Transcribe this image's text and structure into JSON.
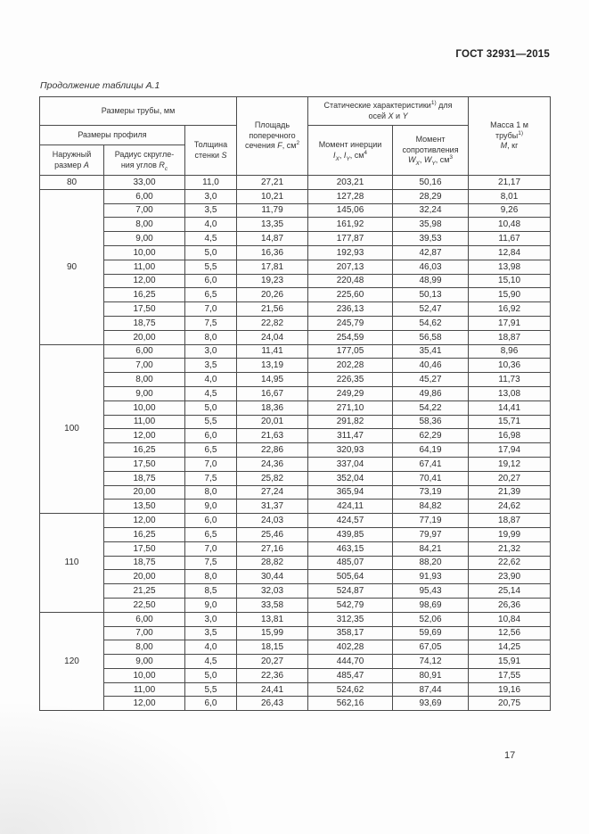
{
  "page": {
    "doc_header": "ГОСТ 32931—2015",
    "table_caption": "Продолжение таблицы А.1",
    "page_number": "17"
  },
  "table": {
    "header": {
      "tube_dims": "Размеры трубы, мм",
      "profile_dims": "Размеры профиля",
      "outer": {
        "l1": "Наружный",
        "l2": "размер ",
        "sym": "А"
      },
      "radius": {
        "l1": "Радиус скругле-",
        "l2": "ния углов ",
        "sym": "R",
        "sub": "с"
      },
      "thickness": {
        "l1": "Толщина",
        "l2": "стенки ",
        "sym": "S"
      },
      "area": {
        "l1": "Площадь",
        "l2": "поперечного",
        "l3": "сечения ",
        "sym": "F",
        "unit": ", см",
        "sup": "2"
      },
      "static": {
        "l1": "Статические характеристики",
        "sup": "1)",
        "l1b": " для",
        "l2": "осей ",
        "symx": "X",
        "sep": " и ",
        "symy": "Y"
      },
      "inertia": {
        "l1": "Момент инерции",
        "sym1": "I",
        "sub1": "X",
        "sep": ", ",
        "sym2": "I",
        "sub2": "Y",
        "unit": ", см",
        "sup": "4"
      },
      "resistance": {
        "l1": "Момент",
        "l2": "сопротивления",
        "sym1": "W",
        "sub1": "X",
        "sep": ", ",
        "sym2": "W",
        "sub2": "Y",
        "unit": ", см",
        "sup": "3"
      },
      "mass": {
        "l1": "Масса 1 м",
        "l2": "трубы",
        "sup": "1)",
        "sym": "М",
        "unit": ", кг"
      }
    },
    "groups": [
      {
        "size": "80",
        "rows": [
          [
            "33,00",
            "11,0",
            "27,21",
            "203,21",
            "50,16",
            "21,17"
          ]
        ]
      },
      {
        "size": "90",
        "rows": [
          [
            "6,00",
            "3,0",
            "10,21",
            "127,28",
            "28,29",
            "8,01"
          ],
          [
            "7,00",
            "3,5",
            "11,79",
            "145,06",
            "32,24",
            "9,26"
          ],
          [
            "8,00",
            "4,0",
            "13,35",
            "161,92",
            "35,98",
            "10,48"
          ],
          [
            "9,00",
            "4,5",
            "14,87",
            "177,87",
            "39,53",
            "11,67"
          ],
          [
            "10,00",
            "5,0",
            "16,36",
            "192,93",
            "42,87",
            "12,84"
          ],
          [
            "11,00",
            "5,5",
            "17,81",
            "207,13",
            "46,03",
            "13,98"
          ],
          [
            "12,00",
            "6,0",
            "19,23",
            "220,48",
            "48,99",
            "15,10"
          ],
          [
            "16,25",
            "6,5",
            "20,26",
            "225,60",
            "50,13",
            "15,90"
          ],
          [
            "17,50",
            "7,0",
            "21,56",
            "236,13",
            "52,47",
            "16,92"
          ],
          [
            "18,75",
            "7,5",
            "22,82",
            "245,79",
            "54,62",
            "17,91"
          ],
          [
            "20,00",
            "8,0",
            "24,04",
            "254,59",
            "56,58",
            "18,87"
          ]
        ]
      },
      {
        "size": "100",
        "rows": [
          [
            "6,00",
            "3,0",
            "11,41",
            "177,05",
            "35,41",
            "8,96"
          ],
          [
            "7,00",
            "3,5",
            "13,19",
            "202,28",
            "40,46",
            "10,36"
          ],
          [
            "8,00",
            "4,0",
            "14,95",
            "226,35",
            "45,27",
            "11,73"
          ],
          [
            "9,00",
            "4,5",
            "16,67",
            "249,29",
            "49,86",
            "13,08"
          ],
          [
            "10,00",
            "5,0",
            "18,36",
            "271,10",
            "54,22",
            "14,41"
          ],
          [
            "11,00",
            "5,5",
            "20,01",
            "291,82",
            "58,36",
            "15,71"
          ],
          [
            "12,00",
            "6,0",
            "21,63",
            "311,47",
            "62,29",
            "16,98"
          ],
          [
            "16,25",
            "6,5",
            "22,86",
            "320,93",
            "64,19",
            "17,94"
          ],
          [
            "17,50",
            "7,0",
            "24,36",
            "337,04",
            "67,41",
            "19,12"
          ],
          [
            "18,75",
            "7,5",
            "25,82",
            "352,04",
            "70,41",
            "20,27"
          ],
          [
            "20,00",
            "8,0",
            "27,24",
            "365,94",
            "73,19",
            "21,39"
          ],
          [
            "13,50",
            "9,0",
            "31,37",
            "424,11",
            "84,82",
            "24,62"
          ]
        ]
      },
      {
        "size": "110",
        "rows": [
          [
            "12,00",
            "6,0",
            "24,03",
            "424,57",
            "77,19",
            "18,87"
          ],
          [
            "16,25",
            "6,5",
            "25,46",
            "439,85",
            "79,97",
            "19,99"
          ],
          [
            "17,50",
            "7,0",
            "27,16",
            "463,15",
            "84,21",
            "21,32"
          ],
          [
            "18,75",
            "7,5",
            "28,82",
            "485,07",
            "88,20",
            "22,62"
          ],
          [
            "20,00",
            "8,0",
            "30,44",
            "505,64",
            "91,93",
            "23,90"
          ],
          [
            "21,25",
            "8,5",
            "32,03",
            "524,87",
            "95,43",
            "25,14"
          ],
          [
            "22,50",
            "9,0",
            "33,58",
            "542,79",
            "98,69",
            "26,36"
          ]
        ]
      },
      {
        "size": "120",
        "rows": [
          [
            "6,00",
            "3,0",
            "13,81",
            "312,35",
            "52,06",
            "10,84"
          ],
          [
            "7,00",
            "3,5",
            "15,99",
            "358,17",
            "59,69",
            "12,56"
          ],
          [
            "8,00",
            "4,0",
            "18,15",
            "402,28",
            "67,05",
            "14,25"
          ],
          [
            "9,00",
            "4,5",
            "20,27",
            "444,70",
            "74,12",
            "15,91"
          ],
          [
            "10,00",
            "5,0",
            "22,36",
            "485,47",
            "80,91",
            "17,55"
          ],
          [
            "11,00",
            "5,5",
            "24,41",
            "524,62",
            "87,44",
            "19,16"
          ],
          [
            "12,00",
            "6,0",
            "26,43",
            "562,16",
            "93,69",
            "20,75"
          ]
        ]
      }
    ]
  }
}
